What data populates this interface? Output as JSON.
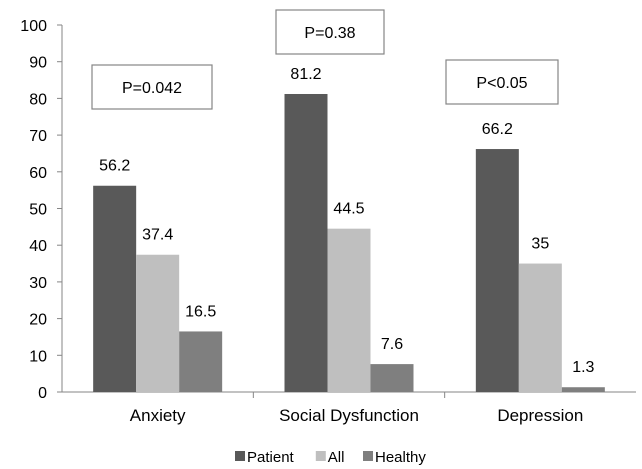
{
  "chart_data": {
    "type": "bar",
    "categories": [
      "Anxiety",
      "Social Dysfunction",
      "Depression"
    ],
    "series": [
      {
        "name": "Patient",
        "values": [
          56.2,
          81.2,
          66.2
        ],
        "color": "#595959"
      },
      {
        "name": "All",
        "values": [
          37.4,
          44.5,
          35
        ],
        "color": "#bfbfbf"
      },
      {
        "name": "Healthy",
        "values": [
          16.5,
          7.6,
          1.3
        ],
        "color": "#7f7f7f"
      }
    ],
    "value_labels": [
      [
        "56.2",
        "81.2",
        "66.2"
      ],
      [
        "37.4",
        "44.5",
        "35"
      ],
      [
        "16.5",
        "7.6",
        "1.3"
      ]
    ],
    "annotations": [
      "P=0.042",
      "P=0.38",
      "P<0.05"
    ],
    "yticks": [
      0,
      10,
      20,
      30,
      40,
      50,
      60,
      70,
      80,
      90,
      100
    ],
    "ylim": [
      0,
      100
    ],
    "grid": false,
    "legend_position": "bottom",
    "title": "",
    "xlabel": "",
    "ylabel": ""
  }
}
